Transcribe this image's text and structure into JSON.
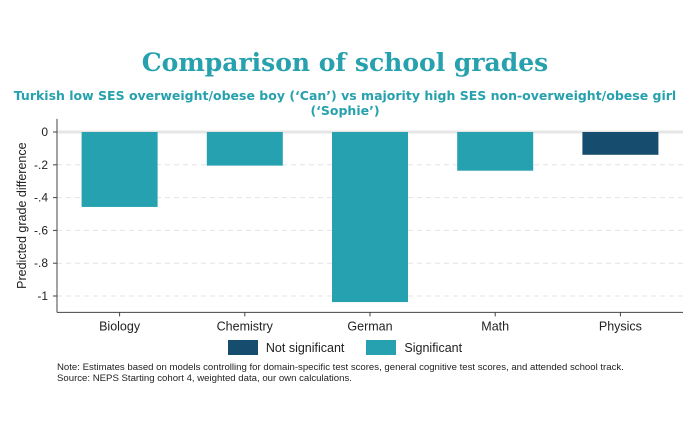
{
  "chart_data": {
    "type": "bar",
    "title": "Comparison of school grades",
    "subtitle": "Turkish low SES overweight/obese boy (‘Can’) vs majority high SES non-overweight/obese girl (‘Sophie’)",
    "ylabel": "Predicted grade difference",
    "xlabel": "",
    "categories": [
      "Biology",
      "Chemistry",
      "German",
      "Math",
      "Physics"
    ],
    "values": [
      -0.457,
      -0.205,
      -1.037,
      -0.236,
      -0.139
    ],
    "significant": [
      true,
      true,
      true,
      true,
      false
    ],
    "ylim": [
      -1.1,
      0.08
    ],
    "yticks": [
      0,
      -0.2,
      -0.4,
      -0.6,
      -0.8,
      -1
    ],
    "ytick_labels": [
      "0",
      "-.2",
      "-.4",
      "-.6",
      "-.8",
      "-1"
    ],
    "grid": true,
    "legend": [
      {
        "label": "Not significant",
        "color": "#164d6e"
      },
      {
        "label": "Significant",
        "color": "#26a1b0"
      }
    ],
    "legend_placement": "bottom"
  },
  "notes": {
    "line1": "Note: Estimates based on models controlling for domain-specific test scores, general cognitive test scores, and attended school track.",
    "line2": "Source: NEPS Starting cohort 4, weighted data, our own calculations."
  }
}
